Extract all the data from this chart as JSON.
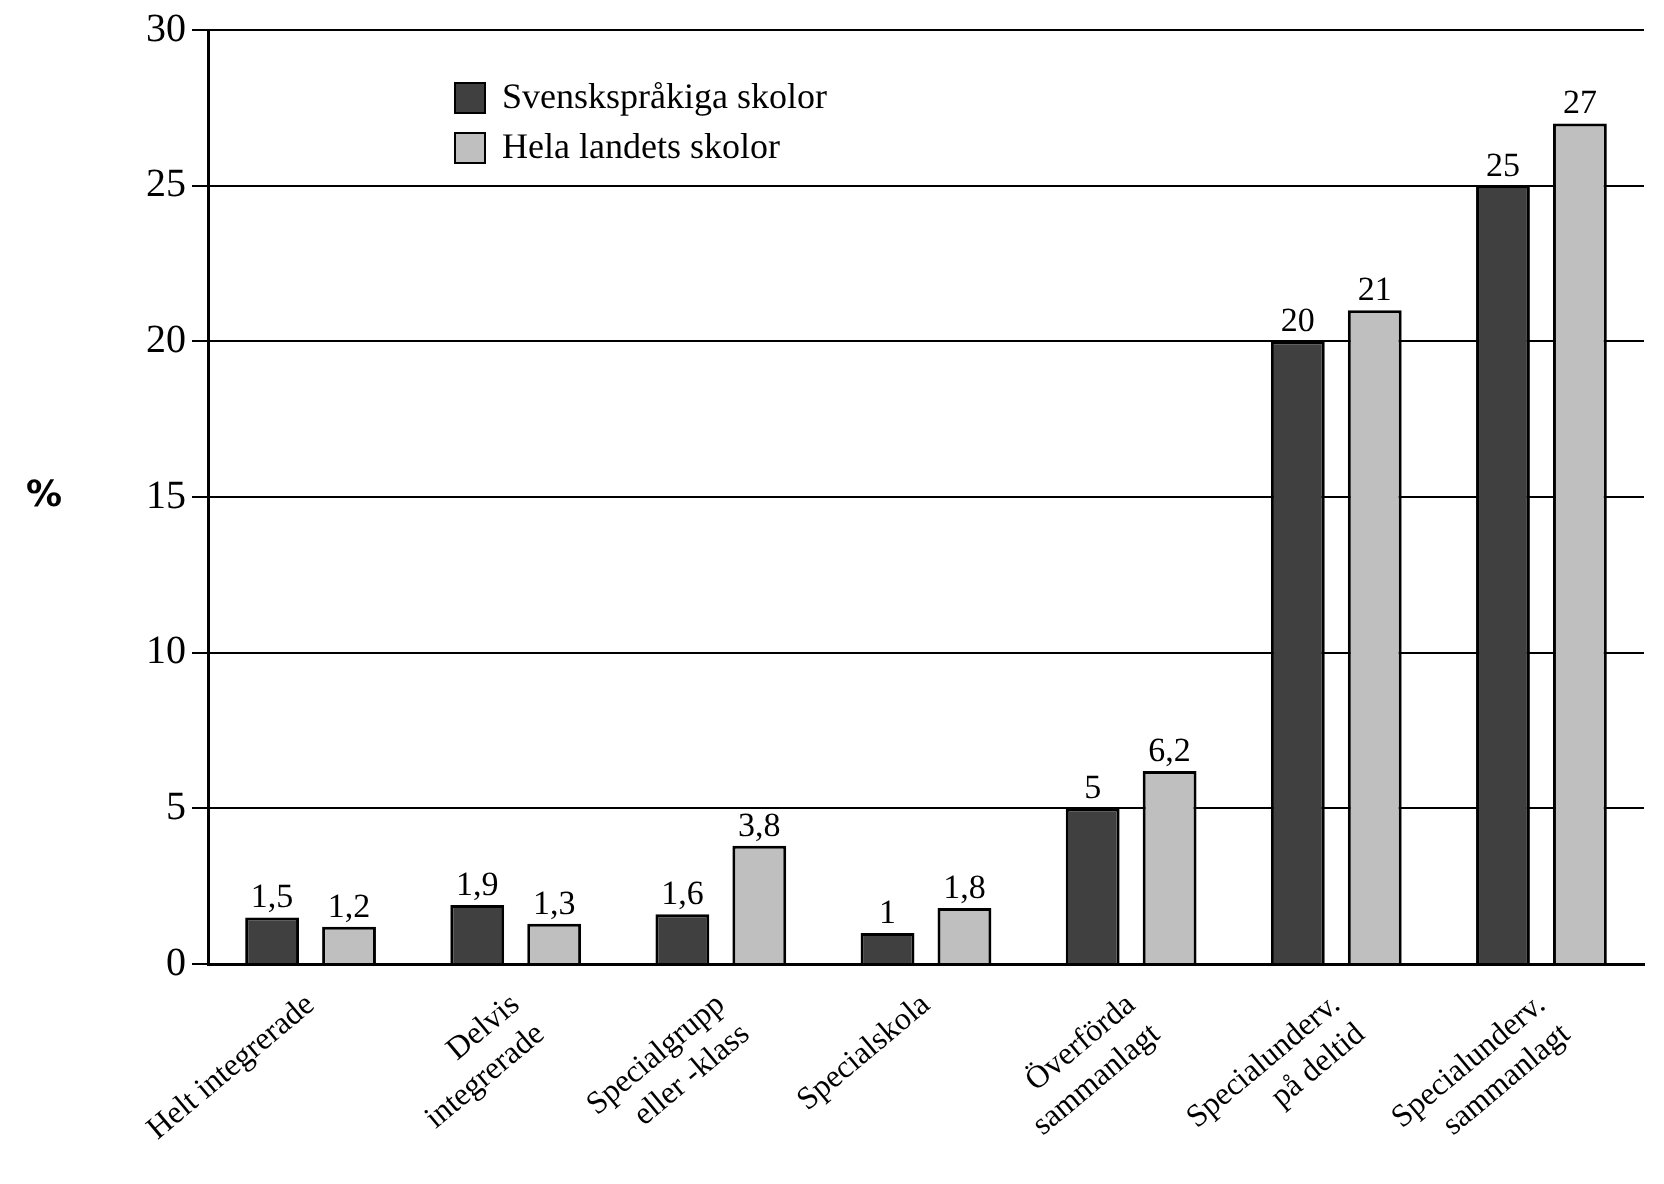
{
  "chart_data": {
    "type": "bar",
    "ylabel": "%",
    "categories": [
      "Helt integrerade",
      "Delvis\nintegrerade",
      "Specialgrupp\neller -klass",
      "Specialskola",
      "Överförda\nsammanlagt",
      "Specialunderv.\npå deltid",
      "Specialunderv.\nsammanlagt"
    ],
    "series": [
      {
        "name": "Svenskspråkiga skolor",
        "color": "#404040",
        "values": [
          1.5,
          1.9,
          1.6,
          1,
          5,
          20,
          25
        ],
        "value_labels": [
          "1,5",
          "1,9",
          "1,6",
          "1",
          "5",
          "20",
          "25"
        ]
      },
      {
        "name": "Hela landets skolor",
        "color": "#bfbfbf",
        "values": [
          1.2,
          1.3,
          3.8,
          1.8,
          6.2,
          21,
          27
        ],
        "value_labels": [
          "1,2",
          "1,3",
          "3,8",
          "1,8",
          "6,2",
          "21",
          "27"
        ]
      }
    ],
    "ylim": [
      0,
      30
    ],
    "yticks": [
      0,
      5,
      10,
      15,
      20,
      25,
      30
    ],
    "grid": "y",
    "legend": "top left"
  }
}
